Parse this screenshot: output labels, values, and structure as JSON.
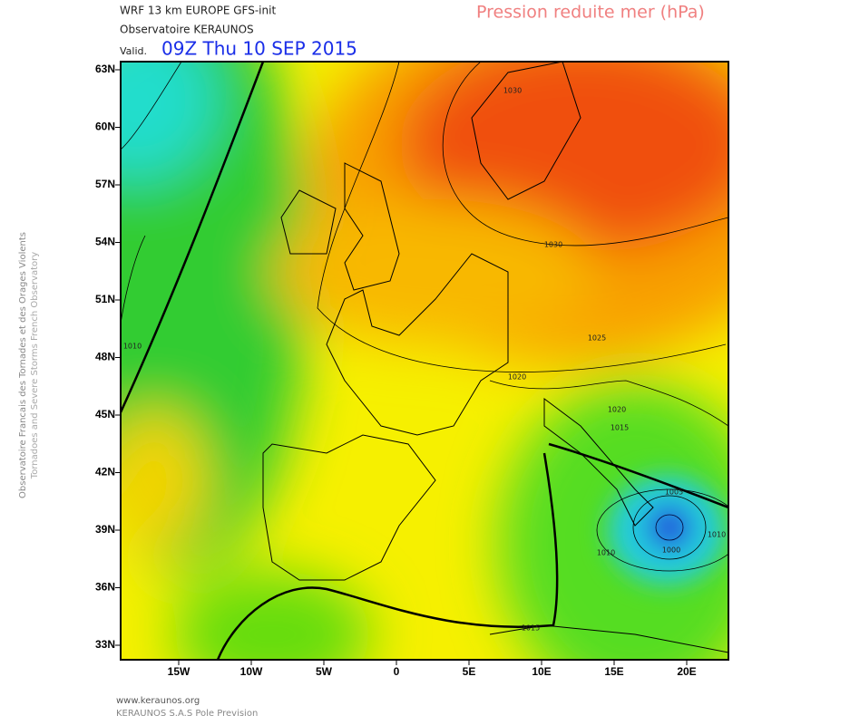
{
  "header": {
    "model": "WRF 13 km EUROPE  GFS-init",
    "observatory": "Observatoire KERAUNOS",
    "valid_label": "Valid.",
    "valid_time": "09Z Thu 10 SEP 2015",
    "field": "Pression reduite mer (hPa)"
  },
  "side_text": [
    "Observatoire Francais des Tornades et des Orages Violents",
    "Tornadoes and Severe Storms French Observatory"
  ],
  "map": {
    "lat_labels": [
      "63N",
      "60N",
      "57N",
      "54N",
      "51N",
      "48N",
      "45N",
      "42N",
      "39N",
      "36N",
      "33N"
    ],
    "lon_labels": [
      "15W",
      "10W",
      "5W",
      "0",
      "5E",
      "10E",
      "15E",
      "20E"
    ],
    "contour_labels": [
      "1030",
      "1030",
      "1025",
      "1020",
      "1020",
      "1015",
      "1010",
      "1005",
      "1000",
      "1010",
      "1015",
      "1010"
    ]
  },
  "footer": [
    "www.keraunos.org",
    "KERAUNOS S.A.S Pole Prevision"
  ]
}
